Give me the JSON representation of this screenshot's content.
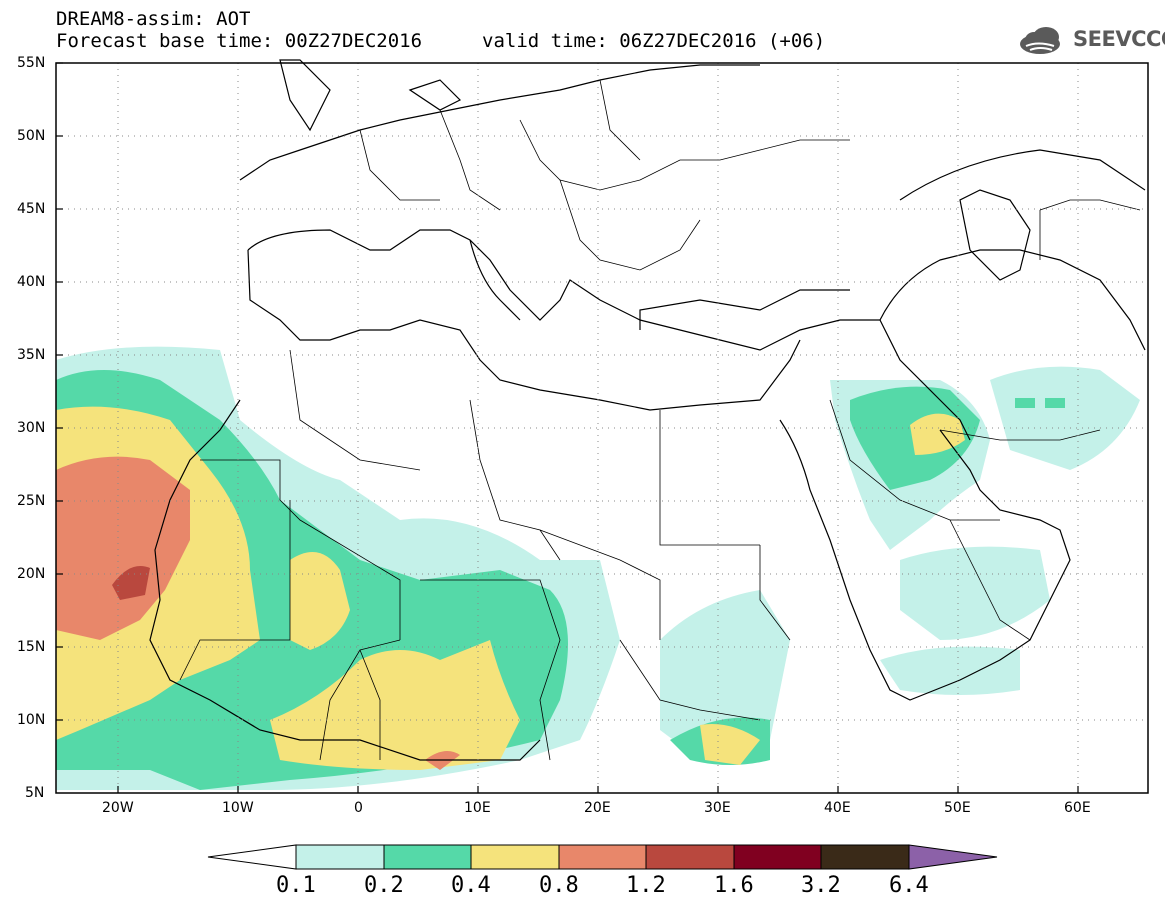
{
  "header": {
    "title": "DREAM8-assim: AOT",
    "base_time": "Forecast base time: 00Z27DEC2016",
    "valid_time": "valid time: 06Z27DEC2016 (+06)"
  },
  "logo": {
    "text": "SEEVCCC",
    "icon": "cloud-icon"
  },
  "map": {
    "lat_labels": [
      "55N",
      "50N",
      "45N",
      "40N",
      "35N",
      "30N",
      "25N",
      "20N",
      "15N",
      "10N",
      "5N"
    ],
    "lon_labels": [
      "20W",
      "10W",
      "0",
      "10E",
      "20E",
      "30E",
      "40E",
      "50E",
      "60E"
    ],
    "lat_range": [
      5,
      55
    ],
    "lon_range": [
      -25,
      65
    ],
    "grid": "dotted"
  },
  "colorbar": {
    "levels": [
      "0.1",
      "0.2",
      "0.4",
      "0.8",
      "1.2",
      "1.6",
      "3.2",
      "6.4"
    ],
    "colors": [
      "#c4f1e9",
      "#55d9a8",
      "#f5e37c",
      "#e8876a",
      "#b9483e",
      "#800020",
      "#3a2a18",
      "#8c61a8"
    ]
  }
}
